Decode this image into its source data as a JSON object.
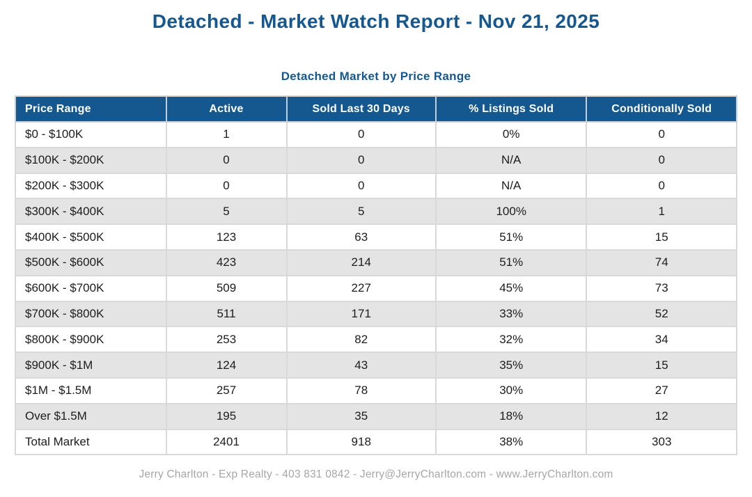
{
  "report": {
    "title": "Detached - Market Watch Report - Nov 21, 2025",
    "footer": "Jerry Charlton - Exp Realty - 403 831 0842 - Jerry@JerryCharlton.com - www.JerryCharlton.com"
  },
  "chart_data": {
    "type": "table",
    "title": "Detached Market by Price Range",
    "columns": [
      "Price Range",
      "Active",
      "Sold Last 30 Days",
      "% Listings Sold",
      "Conditionally Sold"
    ],
    "rows": [
      [
        "$0 - $100K",
        "1",
        "0",
        "0%",
        "0"
      ],
      [
        "$100K - $200K",
        "0",
        "0",
        "N/A",
        "0"
      ],
      [
        "$200K - $300K",
        "0",
        "0",
        "N/A",
        "0"
      ],
      [
        "$300K - $400K",
        "5",
        "5",
        "100%",
        "1"
      ],
      [
        "$400K - $500K",
        "123",
        "63",
        "51%",
        "15"
      ],
      [
        "$500K - $600K",
        "423",
        "214",
        "51%",
        "74"
      ],
      [
        "$600K - $700K",
        "509",
        "227",
        "45%",
        "73"
      ],
      [
        "$700K - $800K",
        "511",
        "171",
        "33%",
        "52"
      ],
      [
        "$800K - $900K",
        "253",
        "82",
        "32%",
        "34"
      ],
      [
        "$900K - $1M",
        "124",
        "43",
        "35%",
        "15"
      ],
      [
        "$1M - $1.5M",
        "257",
        "78",
        "30%",
        "27"
      ],
      [
        "Over $1.5M",
        "195",
        "35",
        "18%",
        "12"
      ],
      [
        "Total Market",
        "2401",
        "918",
        "38%",
        "303"
      ]
    ]
  },
  "colors": {
    "accent_blue": "#15578f",
    "header_bg": "#14588f",
    "header_text": "#ffffff",
    "row_alt_bg": "#e4e4e4",
    "grid_line": "#d9d9d9",
    "body_text": "#1c1c1c",
    "footer_text": "#a6a6a6"
  }
}
